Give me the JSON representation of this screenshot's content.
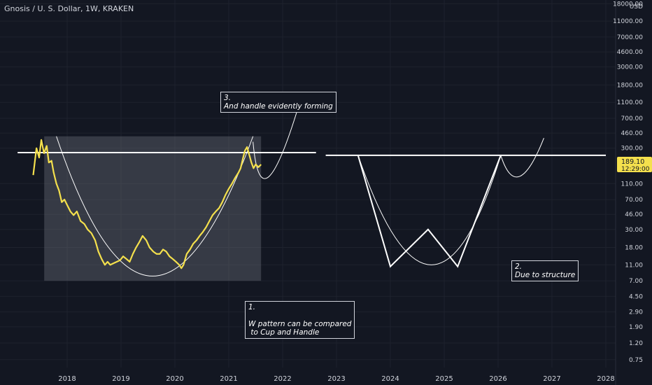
{
  "header": {
    "title": "Gnosis / U. S. Dollar, 1W, KRAKEN"
  },
  "price_scale": {
    "currency": "USD",
    "labels": [
      "18000.00",
      "11000.00",
      "7000.00",
      "4600.00",
      "3000.00",
      "1800.00",
      "1100.00",
      "700.00",
      "460.00",
      "300.00",
      "110.00",
      "70.00",
      "46.00",
      "30.00",
      "18.00",
      "11.00",
      "7.00",
      "4.50",
      "2.90",
      "1.90",
      "1.20",
      "0.75"
    ],
    "last_price": "189.10",
    "countdown": "12:29:00"
  },
  "annotations": {
    "note1": "1.\n\nW pattern can be compared\n to Cup and Handle",
    "note2": "2.\nDue to structure",
    "note3": "3.\nAnd handle evidently forming"
  },
  "colors": {
    "background": "#131722",
    "price_line": "#f4e04d",
    "drawing": "#ffffff",
    "grid": "#1e222d",
    "last_price_badge": "#f4e04d"
  },
  "chart_data": {
    "type": "line",
    "scale": "log",
    "ylim": [
      0.6,
      20000
    ],
    "xlim": [
      2017.6,
      2028.3
    ],
    "x_ticks": [
      "2018",
      "2019",
      "2020",
      "2021",
      "2022",
      "2023",
      "2024",
      "2025",
      "2026",
      "2027",
      "2028"
    ],
    "y_ticks": [
      18000,
      11000,
      7000,
      4600,
      3000,
      1800,
      1100,
      700,
      460,
      300,
      110,
      70,
      46,
      30,
      18,
      11,
      7,
      4.5,
      2.9,
      1.9,
      1.2,
      0.75
    ],
    "series": [
      {
        "x": [
          2017.37,
          2017.43,
          2017.48,
          2017.52,
          2017.57,
          2017.62,
          2017.66,
          2017.71,
          2017.75,
          2017.8,
          2017.85,
          2017.9,
          2017.95,
          2018.0,
          2018.06,
          2018.12,
          2018.18,
          2018.25,
          2018.32,
          2018.38,
          2018.45,
          2018.52,
          2018.58,
          2018.64,
          2018.7,
          2018.75,
          2018.8,
          2018.86,
          2018.92,
          2018.98,
          2019.04,
          2019.1,
          2019.16,
          2019.22,
          2019.28,
          2019.34,
          2019.4,
          2019.47,
          2019.53,
          2019.6,
          2019.66,
          2019.72,
          2019.78,
          2019.84,
          2019.9,
          2019.96,
          2020.02,
          2020.08,
          2020.12,
          2020.16,
          2020.22,
          2020.28,
          2020.34,
          2020.4,
          2020.46,
          2020.52,
          2020.58,
          2020.64,
          2020.7,
          2020.76,
          2020.82,
          2020.88,
          2020.94,
          2021.0,
          2021.06,
          2021.12,
          2021.18,
          2021.22,
          2021.26,
          2021.3,
          2021.34,
          2021.38,
          2021.42,
          2021.46,
          2021.5,
          2021.55,
          2021.6
        ],
        "y": [
          140,
          300,
          230,
          380,
          260,
          320,
          200,
          210,
          150,
          110,
          90,
          65,
          70,
          60,
          50,
          45,
          50,
          38,
          35,
          30,
          27,
          22,
          16,
          13,
          11,
          12,
          11,
          11.5,
          12,
          12.5,
          14,
          13,
          12,
          15,
          18,
          21,
          25,
          22,
          18,
          16,
          15,
          15,
          17,
          16,
          14,
          13,
          12,
          11,
          10,
          11,
          15,
          17,
          20,
          22,
          25,
          28,
          32,
          38,
          45,
          50,
          55,
          65,
          80,
          95,
          110,
          130,
          150,
          170,
          220,
          280,
          310,
          250,
          200,
          170,
          190,
          175,
          189.1
        ]
      }
    ],
    "drawings": {
      "box": {
        "x": [
          2017.6,
          2021.6
        ],
        "y": [
          7,
          420
        ]
      },
      "resistance_left": {
        "x": [
          2017.6,
          2022.1
        ],
        "y": 265
      },
      "resistance_right": {
        "x": [
          2022.8,
          2028.0
        ],
        "y": 245
      },
      "cup_left": {
        "x": [
          2017.8,
          2021.45
        ],
        "low": {
          "x": 2019.55,
          "y": 8
        }
      },
      "handle_left": {
        "x": [
          2021.45,
          2022.35
        ],
        "low": {
          "x": 2021.6,
          "y": 135
        }
      },
      "w_pattern": {
        "x": [
          2023.4,
          2024.0,
          2024.7,
          2025.25,
          2026.05
        ],
        "y": [
          245,
          10.5,
          30,
          10.5,
          245
        ]
      },
      "cup_right": {
        "x": [
          2023.4,
          2026.05
        ],
        "low": {
          "x": 2024.8,
          "y": 11
        }
      },
      "handle_right": {
        "x": [
          2026.05,
          2026.85
        ],
        "low": {
          "x": 2026.35,
          "y": 135
        }
      }
    }
  }
}
